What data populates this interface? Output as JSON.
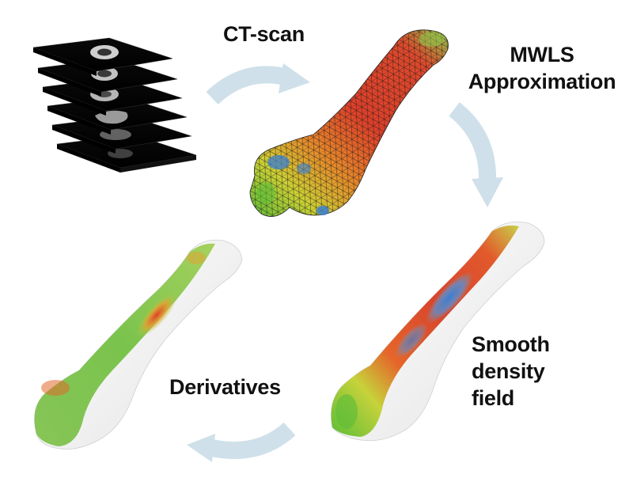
{
  "steps": {
    "ct_scan": "CT-scan",
    "mwls": [
      "MWLS",
      "Approximation"
    ],
    "smooth": [
      "Smooth",
      "density",
      "field"
    ],
    "derivatives": "Derivatives"
  },
  "colors": {
    "arrow": "#cfe0ea",
    "bone_white": "#f2f2f2",
    "field_red": "#e0402a",
    "field_orange": "#e97a28",
    "field_green": "#5cbd38",
    "field_blue": "#3a7fd0",
    "mesh_line": "#1a1a1a",
    "ct_slice": "#050505"
  }
}
